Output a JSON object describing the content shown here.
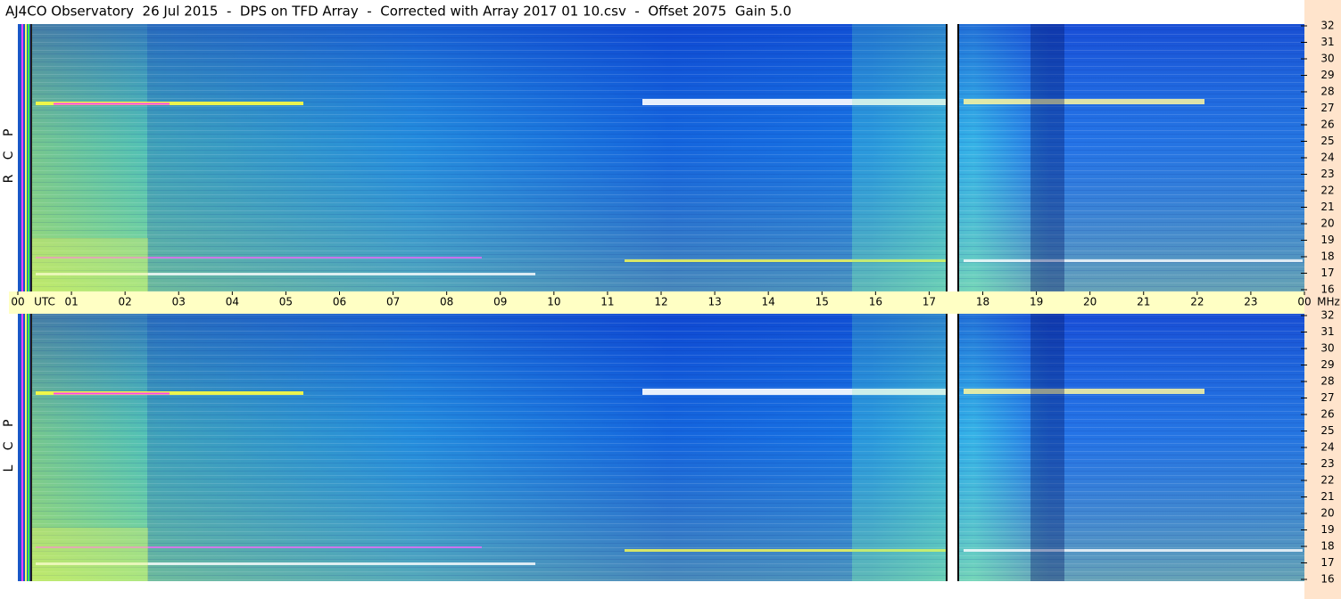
{
  "chart_data": {
    "type": "spectrogram",
    "title": "AJ4CO Observatory  26 Jul 2015  -  DPS on TFD Array  -  Corrected with Array 2017 01 10.csv  -  Offset 2075  Gain 5.0",
    "x_unit": "UTC",
    "y_unit": "MHz",
    "xlim": [
      0,
      24
    ],
    "xticks": [
      {
        "value": 0,
        "label": "00"
      },
      {
        "value": 1,
        "label": "01"
      },
      {
        "value": 2,
        "label": "02"
      },
      {
        "value": 3,
        "label": "03"
      },
      {
        "value": 4,
        "label": "04"
      },
      {
        "value": 5,
        "label": "05"
      },
      {
        "value": 6,
        "label": "06"
      },
      {
        "value": 7,
        "label": "07"
      },
      {
        "value": 8,
        "label": "08"
      },
      {
        "value": 9,
        "label": "09"
      },
      {
        "value": 10,
        "label": "10"
      },
      {
        "value": 11,
        "label": "11"
      },
      {
        "value": 12,
        "label": "12"
      },
      {
        "value": 13,
        "label": "13"
      },
      {
        "value": 14,
        "label": "14"
      },
      {
        "value": 15,
        "label": "15"
      },
      {
        "value": 16,
        "label": "16"
      },
      {
        "value": 17,
        "label": "17"
      },
      {
        "value": 18,
        "label": "18"
      },
      {
        "value": 19,
        "label": "19"
      },
      {
        "value": 20,
        "label": "20"
      },
      {
        "value": 21,
        "label": "21"
      },
      {
        "value": 22,
        "label": "22"
      },
      {
        "value": 23,
        "label": "23"
      },
      {
        "value": 24,
        "label": "00"
      }
    ],
    "ylim": [
      16,
      32
    ],
    "yticks": [
      16,
      17,
      18,
      19,
      20,
      21,
      22,
      23,
      24,
      25,
      26,
      27,
      28,
      29,
      30,
      31,
      32
    ],
    "panels": [
      {
        "label": "R C P"
      },
      {
        "label": "L C P"
      }
    ]
  }
}
